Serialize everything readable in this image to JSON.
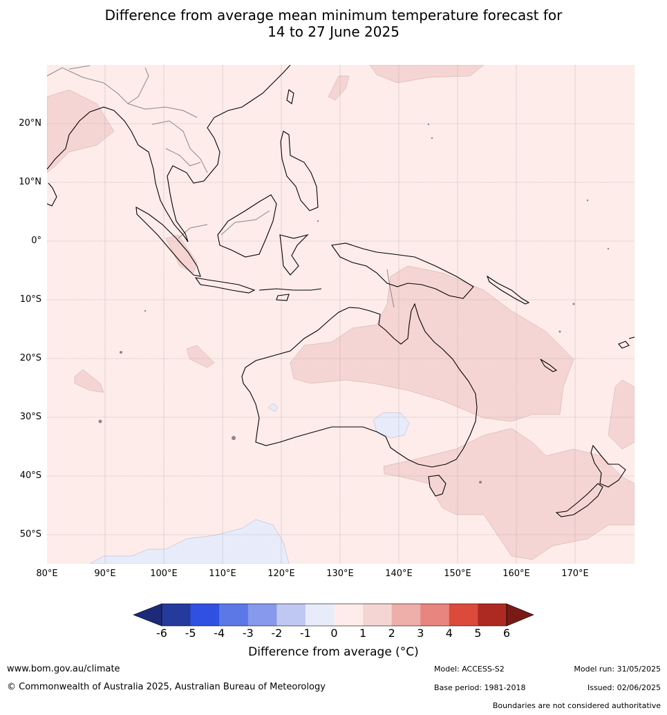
{
  "header": {
    "title_line1": "Difference from average mean minimum temperature forecast for",
    "title_line2": "14 to 27 June 2025"
  },
  "map": {
    "lat_labels": [
      "20°N",
      "10°N",
      "0°",
      "10°S",
      "20°S",
      "30°S",
      "40°S",
      "50°S"
    ],
    "lon_labels": [
      "80°E",
      "90°E",
      "100°E",
      "110°E",
      "120°E",
      "130°E",
      "140°E",
      "150°E",
      "160°E",
      "170°E"
    ],
    "colors": {
      "c_0_1": "#fdecea",
      "c_1_2": "#f5d5d3",
      "c_m1_0": "#e8ecfa",
      "grid": "#999999",
      "coast": "#000000",
      "border": "#888888"
    }
  },
  "colorbar": {
    "ticks": [
      "-6",
      "-5",
      "-4",
      "-3",
      "-2",
      "-1",
      "0",
      "1",
      "2",
      "3",
      "4",
      "5",
      "6"
    ],
    "colors": [
      "#243a9c",
      "#2f50e0",
      "#5c78e6",
      "#8699ec",
      "#bfc7f3",
      "#e8ecfa",
      "#fdecea",
      "#f5d5d3",
      "#eeaeaa",
      "#e8857e",
      "#dc4a3c",
      "#ad2a22"
    ],
    "low_extend_color": "#1c2a78",
    "high_extend_color": "#7a1a16",
    "label": "Difference from average (°C)"
  },
  "footer": {
    "website": "www.bom.gov.au/climate",
    "copyright": "© Commonwealth of Australia 2025, Australian Bureau of Meteorology",
    "model": "Model: ACCESS-S2",
    "base_period": "Base period: 1981-2018",
    "model_run": "Model run: 31/05/2025",
    "issued": "Issued: 02/06/2025",
    "disclaimer": "Boundaries are not considered authoritative"
  }
}
